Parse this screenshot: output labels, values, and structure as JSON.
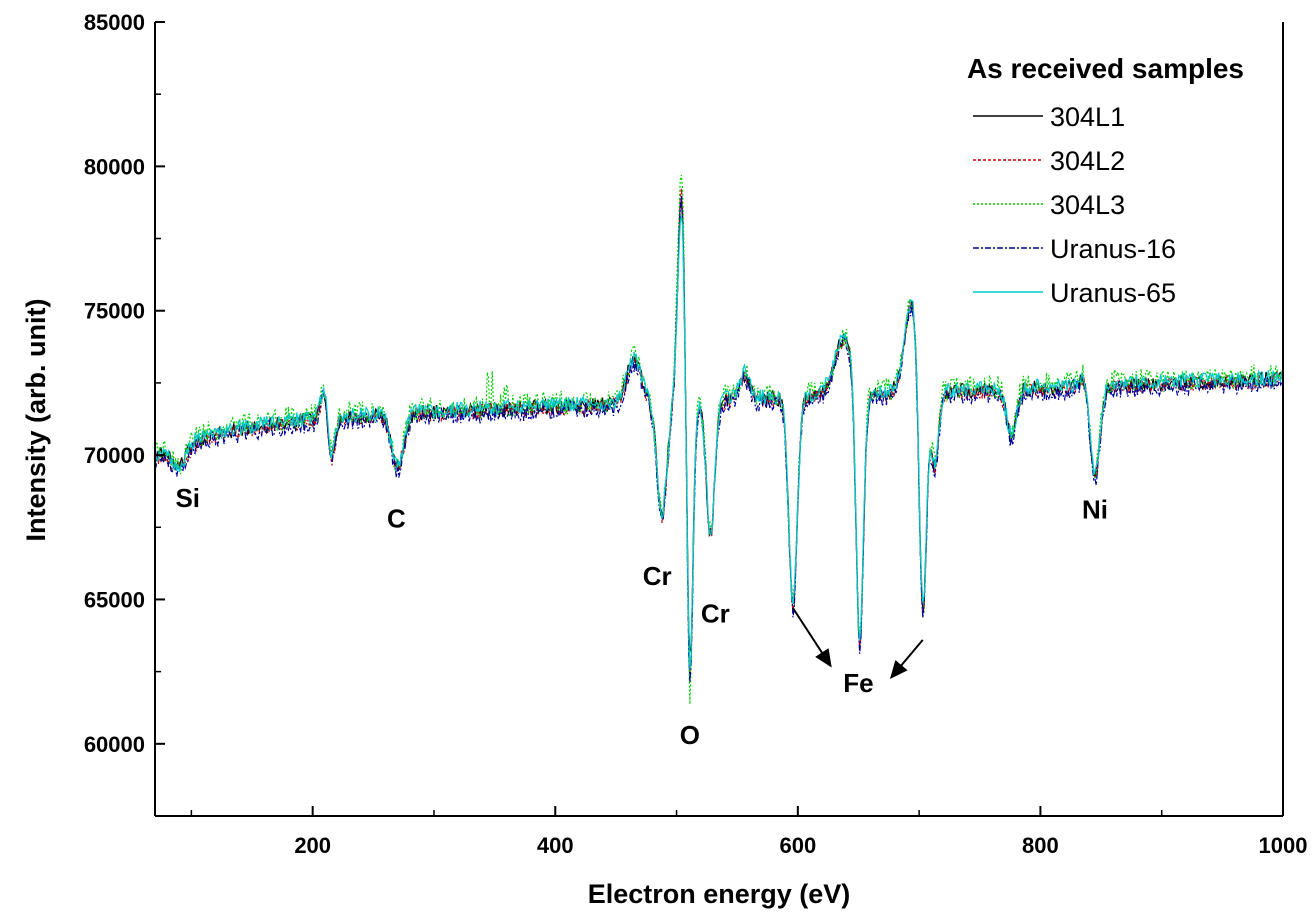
{
  "chart_data": {
    "type": "line",
    "title": "",
    "xlabel": "Electron energy (eV)",
    "ylabel": "Intensity (arb. unit)",
    "xlim": [
      70,
      1000
    ],
    "ylim": [
      57500,
      85000
    ],
    "xticks": [
      200,
      400,
      600,
      800,
      1000
    ],
    "yticks": [
      60000,
      65000,
      70000,
      75000,
      80000,
      85000
    ],
    "grid": false,
    "legend_title": "As received samples",
    "legend_position": "top-right",
    "series": [
      {
        "name": "304L1",
        "color": "#000000",
        "dash": "",
        "peak": 79000,
        "minO": 62500,
        "noise": 260,
        "offset": 0
      },
      {
        "name": "304L2",
        "color": "#cc0000",
        "dash": "3,2",
        "peak": 79300,
        "minO": 62200,
        "noise": 260,
        "offset": -60
      },
      {
        "name": "304L3",
        "color": "#00cc00",
        "dash": "2,2",
        "peak": 80100,
        "minO": 61100,
        "noise": 420,
        "offset": 120
      },
      {
        "name": "Uranus-16",
        "color": "#000099",
        "dash": "6,2,2,2",
        "peak": 79200,
        "minO": 61800,
        "noise": 300,
        "offset": -150
      },
      {
        "name": "Uranus-65",
        "color": "#00cccc",
        "dash": "",
        "peak": 78600,
        "minO": 62000,
        "noise": 260,
        "offset": 60
      }
    ],
    "features": [
      {
        "x": 90,
        "y": 69600,
        "w": 6,
        "kind": "dip"
      },
      {
        "x": 210,
        "y": 72500,
        "w": 3,
        "kind": "peak"
      },
      {
        "x": 215,
        "y": 69700,
        "w": 3,
        "kind": "dip"
      },
      {
        "x": 270,
        "y": 69600,
        "w": 5,
        "kind": "dip"
      },
      {
        "x": 465,
        "y": 73300,
        "w": 6,
        "kind": "peak"
      },
      {
        "x": 488,
        "y": 67900,
        "w": 4,
        "kind": "dip"
      },
      {
        "x": 504,
        "y": 79000,
        "w": 3,
        "kind": "bigpeak"
      },
      {
        "x": 511,
        "y": 62500,
        "w": 2.5,
        "kind": "Odip"
      },
      {
        "x": 528,
        "y": 67300,
        "w": 3.5,
        "kind": "dip"
      },
      {
        "x": 556,
        "y": 72800,
        "w": 4,
        "kind": "peak"
      },
      {
        "x": 596,
        "y": 64800,
        "w": 3.5,
        "kind": "dip"
      },
      {
        "x": 638,
        "y": 74000,
        "w": 8,
        "kind": "peak"
      },
      {
        "x": 651,
        "y": 63000,
        "w": 3,
        "kind": "dip"
      },
      {
        "x": 694,
        "y": 75300,
        "w": 6,
        "kind": "peak"
      },
      {
        "x": 703,
        "y": 63600,
        "w": 3,
        "kind": "dip"
      },
      {
        "x": 713,
        "y": 69600,
        "w": 3,
        "kind": "dip"
      },
      {
        "x": 776,
        "y": 70700,
        "w": 4,
        "kind": "dip"
      },
      {
        "x": 836,
        "y": 72800,
        "w": 3,
        "kind": "peak"
      },
      {
        "x": 845,
        "y": 69300,
        "w": 4,
        "kind": "dip"
      }
    ],
    "annotations": [
      {
        "text": "Si",
        "x": 97,
        "y": 68200
      },
      {
        "text": "C",
        "x": 269,
        "y": 67500
      },
      {
        "text": "Cr",
        "x": 484,
        "y": 65500
      },
      {
        "text": "Cr",
        "x": 532,
        "y": 64200
      },
      {
        "text": "O",
        "x": 511,
        "y": 60000
      },
      {
        "text": "Fe",
        "x": 650,
        "y": 61800
      },
      {
        "text": "Ni",
        "x": 845,
        "y": 67800
      }
    ],
    "arrows": [
      {
        "x1": 596,
        "y1": 64700,
        "x2": 627,
        "y2": 62700
      },
      {
        "x1": 703,
        "y1": 63600,
        "x2": 677,
        "y2": 62300
      }
    ]
  }
}
